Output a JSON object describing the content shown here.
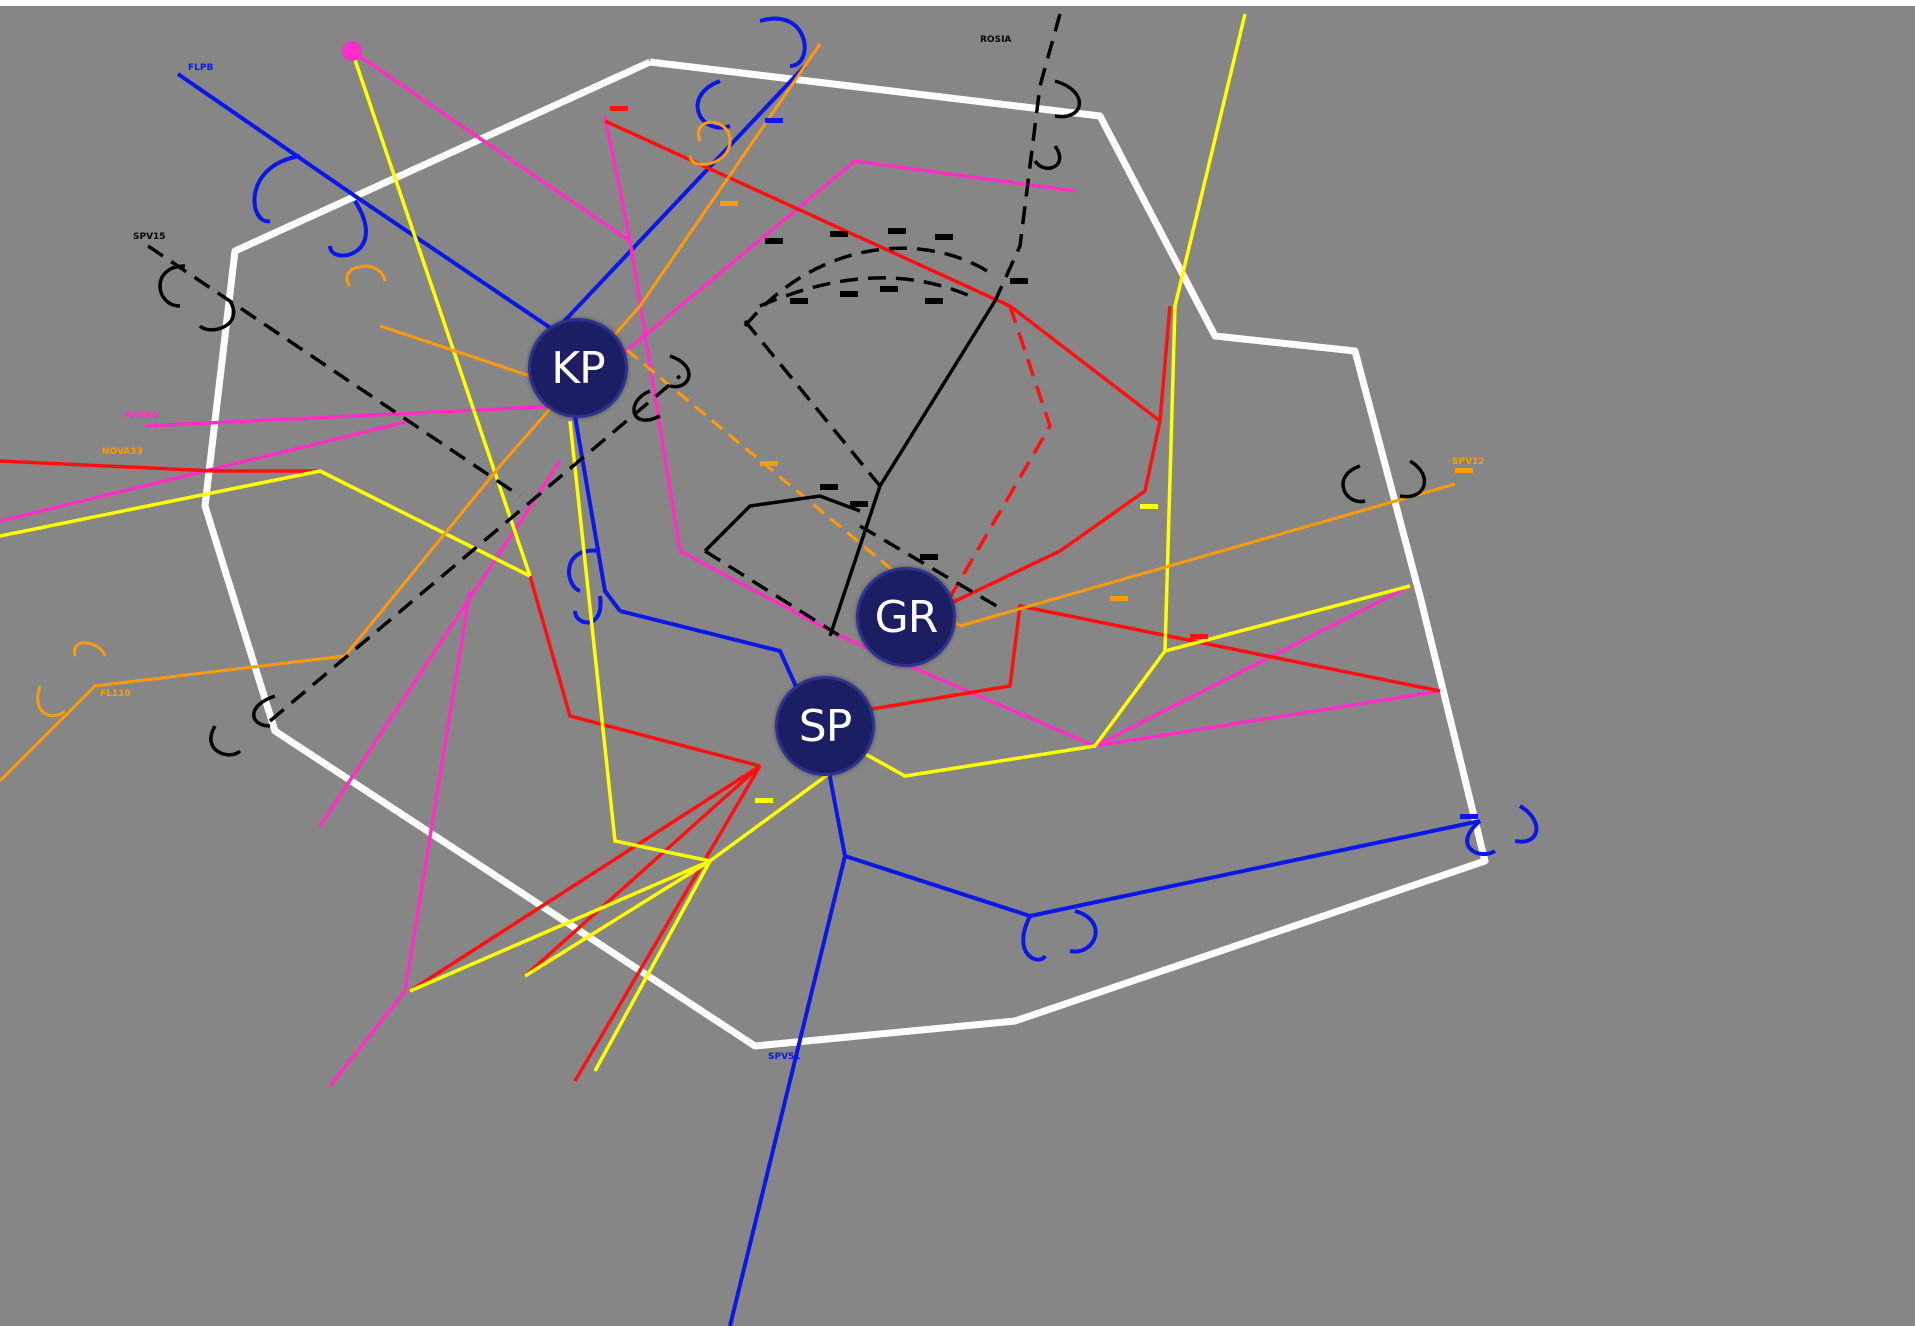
{
  "colors": {
    "background": "#868686",
    "boundary": "#ffffff",
    "blue_route": "#0b17e6",
    "magenta_route": "#ff2fc6",
    "red_route": "#ff1010",
    "yellow_route": "#ffff00",
    "orange_route": "#ff9a0a",
    "black_route": "#000000",
    "hub_fill": "#1b1e63",
    "hub_text": "#ffffff"
  },
  "hubs": [
    {
      "id": "kp",
      "label": "KP"
    },
    {
      "id": "gr",
      "label": "GR"
    },
    {
      "id": "sp",
      "label": "SP"
    }
  ],
  "fix_labels": {
    "blue_top_left": "FLPB",
    "magenta_west": "RA66G",
    "red_west": "NOVA33",
    "orange_sw": "FL110",
    "black_nw": "SPV15",
    "blue_south": "SPV51",
    "orange_east": "SPV12",
    "black_north": "ROSIA"
  }
}
